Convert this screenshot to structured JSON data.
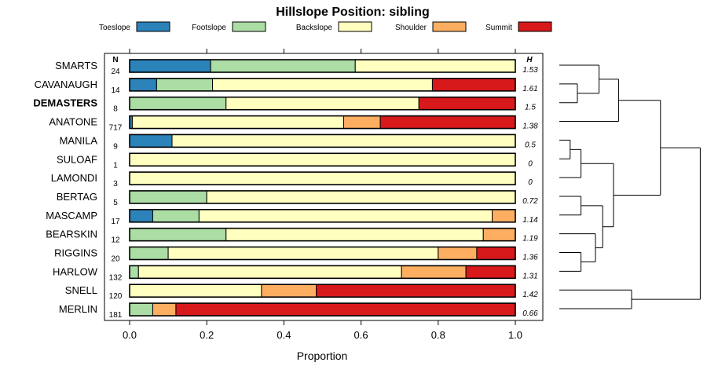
{
  "chart_data": {
    "type": "bar",
    "orientation": "horizontal",
    "stacked": true,
    "title": "Hillslope Position: sibling",
    "xlabel": "Proportion",
    "xlim": [
      0,
      1
    ],
    "xticks": [
      "0.0",
      "0.2",
      "0.4",
      "0.6",
      "0.8",
      "1.0"
    ],
    "xtick_values": [
      0,
      0.2,
      0.4,
      0.6,
      0.8,
      1.0
    ],
    "n_header": "N",
    "h_header": "H",
    "legend": [
      {
        "name": "Toeslope",
        "color": "#2b83ba"
      },
      {
        "name": "Footslope",
        "color": "#abdda4"
      },
      {
        "name": "Backslope",
        "color": "#ffffbf"
      },
      {
        "name": "Shoulder",
        "color": "#fdae61"
      },
      {
        "name": "Summit",
        "color": "#d7191c"
      }
    ],
    "categories": [
      "SMARTS",
      "CAVANAUGH",
      "DEMASTERS",
      "ANATONE",
      "MANILA",
      "SULOAF",
      "LAMONDI",
      "BERTAG",
      "MASCAMP",
      "BEARSKIN",
      "RIGGINS",
      "HARLOW",
      "SNELL",
      "MERLIN"
    ],
    "highlight": "DEMASTERS",
    "n": [
      "24",
      "14",
      "8",
      "717",
      "9",
      "1",
      "3",
      "5",
      "17",
      "12",
      "20",
      "132",
      "120",
      "181"
    ],
    "h": [
      "1.53",
      "1.61",
      "1.5",
      "1.38",
      "0.5",
      "0",
      "0",
      "0.72",
      "1.14",
      "1.19",
      "1.36",
      "1.31",
      "1.42",
      "0.66"
    ],
    "series": [
      {
        "name": "Toeslope",
        "values": [
          0.21,
          0.07,
          0,
          0.007,
          0.11,
          0,
          0,
          0,
          0.06,
          0,
          0,
          0,
          0,
          0
        ]
      },
      {
        "name": "Footslope",
        "values": [
          0.375,
          0.145,
          0.25,
          0,
          0,
          0,
          0,
          0.2,
          0.12,
          0.25,
          0.1,
          0.023,
          0,
          0.06
        ]
      },
      {
        "name": "Backslope",
        "values": [
          0.415,
          0.57,
          0.5,
          0.548,
          0.89,
          1.0,
          1.0,
          0.8,
          0.76,
          0.667,
          0.7,
          0.682,
          0.342,
          0
        ]
      },
      {
        "name": "Shoulder",
        "values": [
          0,
          0,
          0,
          0.095,
          0,
          0,
          0,
          0,
          0.06,
          0.083,
          0.1,
          0.167,
          0.142,
          0.06
        ]
      },
      {
        "name": "Summit",
        "values": [
          0,
          0.215,
          0.25,
          0.35,
          0,
          0,
          0,
          0,
          0,
          0,
          0.1,
          0.128,
          0.516,
          0.88
        ]
      }
    ],
    "dendrogram": {
      "description": "hierarchical clustering of rows",
      "tree": [
        [
          [
            [
              0,
              [
                1,
                2
              ]
            ],
            3
          ],
          [
            [
              [
                4,
                5
              ],
              6
            ],
            [
              [
                7,
                8
              ],
              [
                9,
                [
                  10,
                  11
                ]
              ]
            ]
          ]
        ],
        [
          12,
          13
        ]
      ],
      "heights": {
        "0|1,2": 0.55,
        "1|2": 0.25,
        "0,1,2|3": 0.82,
        "4|5": 0.15,
        "4,5|6": 0.3,
        "7|8": 0.3,
        "9|10,11": 0.5,
        "10|11": 0.3,
        "7,8|9,10,11": 0.6,
        "4,5,6|7..11": 0.75,
        "all-upper": 1.4,
        "12|13": 1.0,
        "root": 1.95
      }
    }
  }
}
